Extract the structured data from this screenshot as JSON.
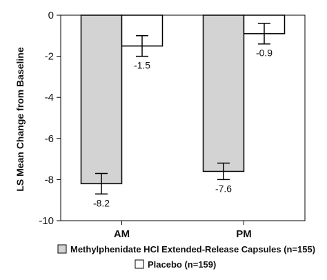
{
  "chart_data": {
    "type": "bar",
    "title": "",
    "xlabel": "",
    "ylabel": "LS Mean Change from Baseline",
    "categories": [
      "AM",
      "PM"
    ],
    "ylim": [
      -10,
      0
    ],
    "yticks": [
      0,
      -2,
      -4,
      -6,
      -8,
      -10
    ],
    "ytick_labels": [
      "0",
      "-2",
      "-4",
      "-6",
      "-8",
      "-10"
    ],
    "grid": false,
    "legend_position": "bottom",
    "series": [
      {
        "name": "Methylphenidate HCl Extended-Release Capsules (n=155)",
        "color": "#d3d3d3",
        "values": [
          -8.2,
          -7.6
        ],
        "value_labels": [
          "-8.2",
          "-7.6"
        ],
        "error_low": [
          -8.7,
          -8.0
        ],
        "error_high": [
          -7.7,
          -7.2
        ]
      },
      {
        "name": "Placebo (n=159)",
        "color": "#ffffff",
        "values": [
          -1.5,
          -0.9
        ],
        "value_labels": [
          "-1.5",
          "-0.9"
        ],
        "error_low": [
          -2.0,
          -1.4
        ],
        "error_high": [
          -1.0,
          -0.4
        ]
      }
    ]
  }
}
